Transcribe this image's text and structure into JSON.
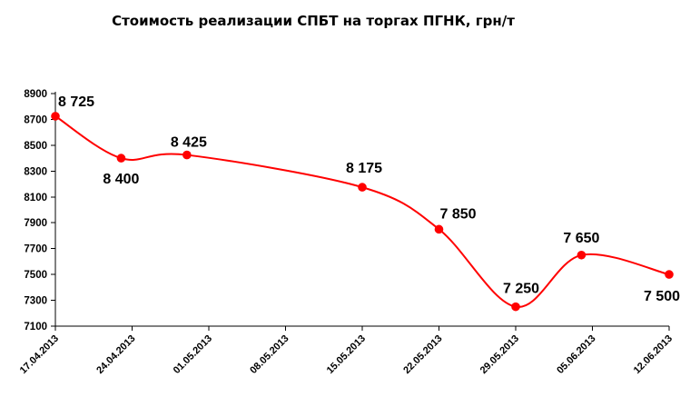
{
  "chart_data": {
    "type": "line",
    "title": "Стоимость реализации СПБТ на торгах ПГНК, грн/т",
    "xlabel": "",
    "ylabel": "",
    "x_tick_labels": [
      "17.04.2013",
      "24.04.2013",
      "01.05.2013",
      "08.05.2013",
      "15.05.2013",
      "22.05.2013",
      "29.05.2013",
      "05.06.2013",
      "12.06.2013"
    ],
    "y_tick_labels": [
      "7100",
      "7300",
      "7500",
      "7700",
      "7900",
      "8100",
      "8300",
      "8500",
      "8700",
      "8900"
    ],
    "ylim": [
      7100,
      8900
    ],
    "x_range_days": [
      0,
      56
    ],
    "grid": false,
    "legend": "none",
    "series": [
      {
        "color": "#ff0000",
        "points": [
          {
            "date": "17.04.2013",
            "day": 0,
            "value": 8725,
            "label": "8 725"
          },
          {
            "date": "23.04.2013",
            "day": 6,
            "value": 8400,
            "label": "8 400"
          },
          {
            "date": "29.04.2013",
            "day": 12,
            "value": 8425,
            "label": "8 425"
          },
          {
            "date": "15.05.2013",
            "day": 28,
            "value": 8175,
            "label": "8 175"
          },
          {
            "date": "22.05.2013",
            "day": 35,
            "value": 7850,
            "label": "7 850"
          },
          {
            "date": "29.05.2013",
            "day": 42,
            "value": 7250,
            "label": "7 250"
          },
          {
            "date": "04.06.2013",
            "day": 48,
            "value": 7650,
            "label": "7 650"
          },
          {
            "date": "12.06.2013",
            "day": 56,
            "value": 7500,
            "label": "7 500"
          }
        ]
      }
    ]
  }
}
